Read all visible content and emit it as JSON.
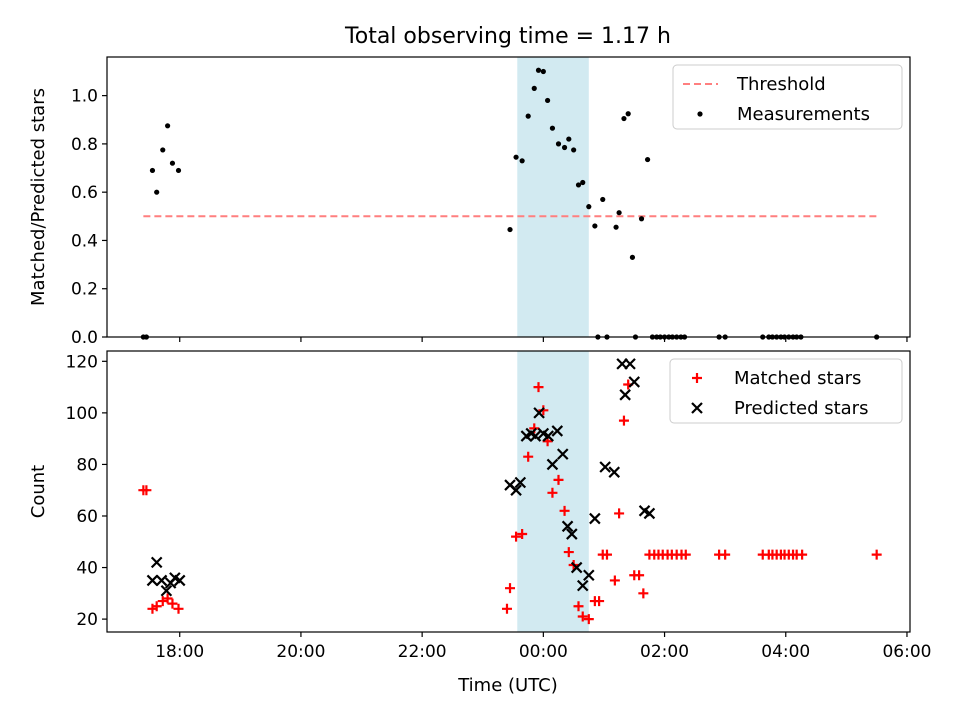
{
  "figure": {
    "title": "Total observing time = 1.17 h",
    "xlabel": "Time (UTC)"
  },
  "chart_data": [
    {
      "type": "scatter",
      "panel": "top",
      "title": "Total observing time = 1.17 h",
      "xlabel": "",
      "ylabel": "Matched/Predicted stars",
      "x_unit": "hours (UTC, relative to 00:00)",
      "xlim": [
        -7.2,
        6.05
      ],
      "ylim": [
        0,
        1.16
      ],
      "x_ticks": [
        -6,
        -4,
        -2,
        0,
        2,
        4,
        6
      ],
      "x_tick_labels": [
        "",
        "",
        "",
        "",
        "",
        "",
        ""
      ],
      "y_ticks": [
        0.0,
        0.2,
        0.4,
        0.6,
        0.8,
        1.0
      ],
      "y_tick_labels": [
        "0.0",
        "0.2",
        "0.4",
        "0.6",
        "0.8",
        "1.0"
      ],
      "shaded_region": {
        "x": [
          -0.43,
          0.75
        ],
        "color": "#add8e6"
      },
      "legend": {
        "placement": "top-right",
        "entries": [
          "Threshold",
          "Measurements"
        ]
      },
      "series": [
        {
          "name": "Threshold",
          "kind": "dashed-line",
          "color": "#ff7f7f",
          "x": [
            -6.6,
            5.55
          ],
          "y": [
            0.5,
            0.5
          ]
        },
        {
          "name": "Measurements",
          "kind": "scatter",
          "color": "#000000",
          "marker": "dot",
          "points": [
            [
              -6.6,
              0.0
            ],
            [
              -6.55,
              0.0
            ],
            [
              -6.45,
              0.69
            ],
            [
              -6.38,
              0.6
            ],
            [
              -6.28,
              0.775
            ],
            [
              -6.2,
              0.875
            ],
            [
              -6.12,
              0.72
            ],
            [
              -6.02,
              0.69
            ],
            [
              -0.55,
              0.445
            ],
            [
              -0.45,
              0.745
            ],
            [
              -0.35,
              0.73
            ],
            [
              -0.25,
              0.915
            ],
            [
              -0.15,
              1.03
            ],
            [
              -0.08,
              1.105
            ],
            [
              0.0,
              1.1
            ],
            [
              0.07,
              0.98
            ],
            [
              0.15,
              0.865
            ],
            [
              0.25,
              0.8
            ],
            [
              0.35,
              0.785
            ],
            [
              0.42,
              0.82
            ],
            [
              0.5,
              0.775
            ],
            [
              0.58,
              0.63
            ],
            [
              0.65,
              0.64
            ],
            [
              0.75,
              0.54
            ],
            [
              0.85,
              0.46
            ],
            [
              0.9,
              0.0
            ],
            [
              0.98,
              0.57
            ],
            [
              1.05,
              0.0
            ],
            [
              1.2,
              0.455
            ],
            [
              1.25,
              0.515
            ],
            [
              1.33,
              0.905
            ],
            [
              1.4,
              0.925
            ],
            [
              1.47,
              0.33
            ],
            [
              1.52,
              0.0
            ],
            [
              1.62,
              0.49
            ],
            [
              1.72,
              0.735
            ],
            [
              1.8,
              0.0
            ],
            [
              1.87,
              0.0
            ],
            [
              1.93,
              0.0
            ],
            [
              2.0,
              0.0
            ],
            [
              2.07,
              0.0
            ],
            [
              2.13,
              0.0
            ],
            [
              2.2,
              0.0
            ],
            [
              2.27,
              0.0
            ],
            [
              2.33,
              0.0
            ],
            [
              2.9,
              0.0
            ],
            [
              3.0,
              0.0
            ],
            [
              3.62,
              0.0
            ],
            [
              3.72,
              0.0
            ],
            [
              3.78,
              0.0
            ],
            [
              3.85,
              0.0
            ],
            [
              3.92,
              0.0
            ],
            [
              3.98,
              0.0
            ],
            [
              4.05,
              0.0
            ],
            [
              4.12,
              0.0
            ],
            [
              4.18,
              0.0
            ],
            [
              4.25,
              0.0
            ],
            [
              5.5,
              0.0
            ]
          ]
        }
      ]
    },
    {
      "type": "scatter",
      "panel": "bottom",
      "xlabel": "Time (UTC)",
      "ylabel": "Count",
      "x_unit": "hours (UTC, relative to 00:00)",
      "xlim": [
        -7.2,
        6.05
      ],
      "ylim": [
        15,
        124
      ],
      "x_ticks": [
        -6,
        -4,
        -2,
        0,
        2,
        4,
        6
      ],
      "x_tick_labels": [
        "18:00",
        "20:00",
        "22:00",
        "00:00",
        "02:00",
        "04:00",
        "06:00"
      ],
      "y_ticks": [
        20,
        40,
        60,
        80,
        100,
        120
      ],
      "y_tick_labels": [
        "20",
        "40",
        "60",
        "80",
        "100",
        "120"
      ],
      "shaded_region": {
        "x": [
          -0.43,
          0.75
        ],
        "color": "#add8e6"
      },
      "legend": {
        "placement": "top-right",
        "entries": [
          "Matched stars",
          "Predicted stars"
        ]
      },
      "series": [
        {
          "name": "Matched stars",
          "kind": "scatter",
          "color": "#ff0000",
          "marker": "plus",
          "points": [
            [
              -6.6,
              70
            ],
            [
              -6.55,
              70
            ],
            [
              -6.45,
              24
            ],
            [
              -6.38,
              25
            ],
            [
              -6.28,
              27
            ],
            [
              -6.2,
              28
            ],
            [
              -6.12,
              26
            ],
            [
              -6.02,
              24
            ],
            [
              -0.6,
              24
            ],
            [
              -0.55,
              32
            ],
            [
              -0.45,
              52
            ],
            [
              -0.35,
              53
            ],
            [
              -0.25,
              83
            ],
            [
              -0.15,
              94
            ],
            [
              -0.08,
              110
            ],
            [
              0.0,
              101
            ],
            [
              0.07,
              89
            ],
            [
              0.15,
              69
            ],
            [
              0.25,
              74
            ],
            [
              0.35,
              62
            ],
            [
              0.42,
              46
            ],
            [
              0.5,
              41
            ],
            [
              0.58,
              25
            ],
            [
              0.65,
              21
            ],
            [
              0.75,
              20
            ],
            [
              0.85,
              27
            ],
            [
              0.92,
              27
            ],
            [
              0.98,
              45
            ],
            [
              1.05,
              45
            ],
            [
              1.18,
              35
            ],
            [
              1.25,
              61
            ],
            [
              1.33,
              97
            ],
            [
              1.4,
              111
            ],
            [
              1.5,
              37
            ],
            [
              1.58,
              37
            ],
            [
              1.65,
              30
            ],
            [
              1.75,
              45
            ],
            [
              1.83,
              45
            ],
            [
              1.9,
              45
            ],
            [
              1.97,
              45
            ],
            [
              2.05,
              45
            ],
            [
              2.12,
              45
            ],
            [
              2.2,
              45
            ],
            [
              2.28,
              45
            ],
            [
              2.35,
              45
            ],
            [
              2.9,
              45
            ],
            [
              3.0,
              45
            ],
            [
              3.62,
              45
            ],
            [
              3.72,
              45
            ],
            [
              3.78,
              45
            ],
            [
              3.85,
              45
            ],
            [
              3.92,
              45
            ],
            [
              3.98,
              45
            ],
            [
              4.05,
              45
            ],
            [
              4.12,
              45
            ],
            [
              4.18,
              45
            ],
            [
              4.27,
              45
            ],
            [
              5.5,
              45
            ]
          ]
        },
        {
          "name": "Predicted stars",
          "kind": "scatter",
          "color": "#000000",
          "marker": "x",
          "points": [
            [
              -6.45,
              35
            ],
            [
              -6.38,
              42
            ],
            [
              -6.3,
              35
            ],
            [
              -6.22,
              31
            ],
            [
              -6.15,
              34
            ],
            [
              -6.08,
              36
            ],
            [
              -6.0,
              35
            ],
            [
              -0.55,
              72
            ],
            [
              -0.45,
              70
            ],
            [
              -0.38,
              73
            ],
            [
              -0.28,
              91
            ],
            [
              -0.2,
              92
            ],
            [
              -0.13,
              91
            ],
            [
              -0.07,
              100
            ],
            [
              0.0,
              92
            ],
            [
              0.08,
              91
            ],
            [
              0.15,
              80
            ],
            [
              0.23,
              93
            ],
            [
              0.32,
              84
            ],
            [
              0.4,
              56
            ],
            [
              0.47,
              53
            ],
            [
              0.55,
              40
            ],
            [
              0.65,
              33
            ],
            [
              0.75,
              37
            ],
            [
              0.85,
              59
            ],
            [
              1.02,
              79
            ],
            [
              1.17,
              77
            ],
            [
              1.3,
              119
            ],
            [
              1.35,
              107
            ],
            [
              1.43,
              119
            ],
            [
              1.5,
              112
            ],
            [
              1.67,
              62
            ],
            [
              1.75,
              61
            ]
          ]
        }
      ]
    }
  ]
}
